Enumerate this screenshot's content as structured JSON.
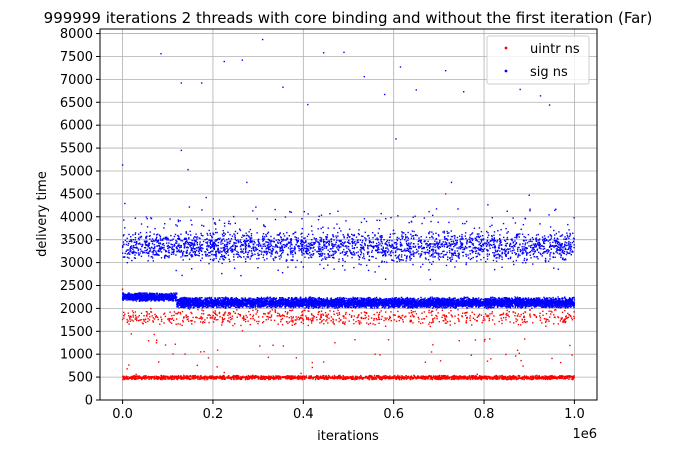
{
  "chart_data": {
    "type": "scatter",
    "title": "999999 iterations 2 threads with core binding and without the first iteration (Far)",
    "xlabel": "iterations",
    "ylabel": "delivery time",
    "x_offset_text": "1e6",
    "xlim": [
      -50000,
      1050000
    ],
    "ylim": [
      0,
      8100
    ],
    "x_ticks": [
      0,
      200000,
      400000,
      600000,
      800000,
      1000000
    ],
    "x_tick_labels": [
      "0.0",
      "0.2",
      "0.4",
      "0.6",
      "0.8",
      "1.0"
    ],
    "y_ticks": [
      0,
      500,
      1000,
      1500,
      2000,
      2500,
      3000,
      3500,
      4000,
      4500,
      5000,
      5500,
      6000,
      6500,
      7000,
      7500,
      8000
    ],
    "y_tick_labels": [
      "0",
      "500",
      "1000",
      "1500",
      "2000",
      "2500",
      "3000",
      "3500",
      "4000",
      "4500",
      "5000",
      "5500",
      "6000",
      "6500",
      "7000",
      "7500",
      "8000"
    ],
    "grid": true,
    "legend_position": "top-right",
    "series": [
      {
        "name": "uintr ns",
        "color": "#ff0000",
        "marker": "point",
        "bands": [
          {
            "x_range": [
              0,
              1000000
            ],
            "y_range": [
              440,
              540
            ],
            "count": 2200
          },
          {
            "x_range": [
              0,
              1000000
            ],
            "y_range": [
              1600,
              2000
            ],
            "count": 750
          },
          {
            "x_range": [
              0,
              1000000
            ],
            "y_range": [
              550,
              1550
            ],
            "count": 40
          }
        ],
        "outliers": [
          [
            0,
            2420
          ],
          [
            10000,
            680
          ],
          [
            30000,
            560
          ],
          [
            70000,
            1430
          ],
          [
            75000,
            1250
          ],
          [
            80000,
            830
          ],
          [
            95000,
            1200
          ],
          [
            190000,
            920
          ],
          [
            225000,
            600
          ],
          [
            395000,
            580
          ],
          [
            420000,
            710
          ],
          [
            445000,
            830
          ],
          [
            470000,
            1250
          ],
          [
            715000,
            4500
          ],
          [
            785000,
            560
          ],
          [
            870000,
            960
          ],
          [
            878000,
            1020
          ],
          [
            882000,
            860
          ],
          [
            890000,
            1330
          ],
          [
            990000,
            1190
          ],
          [
            995000,
            980
          ]
        ]
      },
      {
        "name": "sig ns",
        "color": "#0000ff",
        "marker": "point",
        "bands": [
          {
            "x_range": [
              0,
              120000
            ],
            "y_range": [
              2150,
              2350
            ],
            "count": 900
          },
          {
            "x_range": [
              120000,
              1000000
            ],
            "y_range": [
              2000,
              2250
            ],
            "count": 6500
          },
          {
            "x_range": [
              0,
              1000000
            ],
            "y_range": [
              3000,
              3700
            ],
            "count": 2300
          },
          {
            "x_range": [
              0,
              1000000
            ],
            "y_range": [
              2600,
              4300
            ],
            "count": 450
          }
        ],
        "outliers": [
          [
            0,
            5130
          ],
          [
            5000,
            4290
          ],
          [
            85000,
            7560
          ],
          [
            130000,
            6920
          ],
          [
            130000,
            5450
          ],
          [
            145000,
            5030
          ],
          [
            175000,
            6920
          ],
          [
            185000,
            4420
          ],
          [
            225000,
            7390
          ],
          [
            265000,
            7420
          ],
          [
            275000,
            4750
          ],
          [
            310000,
            7870
          ],
          [
            355000,
            6830
          ],
          [
            445000,
            7580
          ],
          [
            490000,
            7590
          ],
          [
            535000,
            7060
          ],
          [
            580000,
            6670
          ],
          [
            605000,
            5700
          ],
          [
            615000,
            7270
          ],
          [
            650000,
            6770
          ],
          [
            715000,
            7190
          ],
          [
            728000,
            4750
          ],
          [
            755000,
            6730
          ],
          [
            880000,
            6780
          ],
          [
            900000,
            4470
          ],
          [
            925000,
            6640
          ],
          [
            945000,
            6440
          ],
          [
            410000,
            6450
          ]
        ]
      }
    ]
  }
}
